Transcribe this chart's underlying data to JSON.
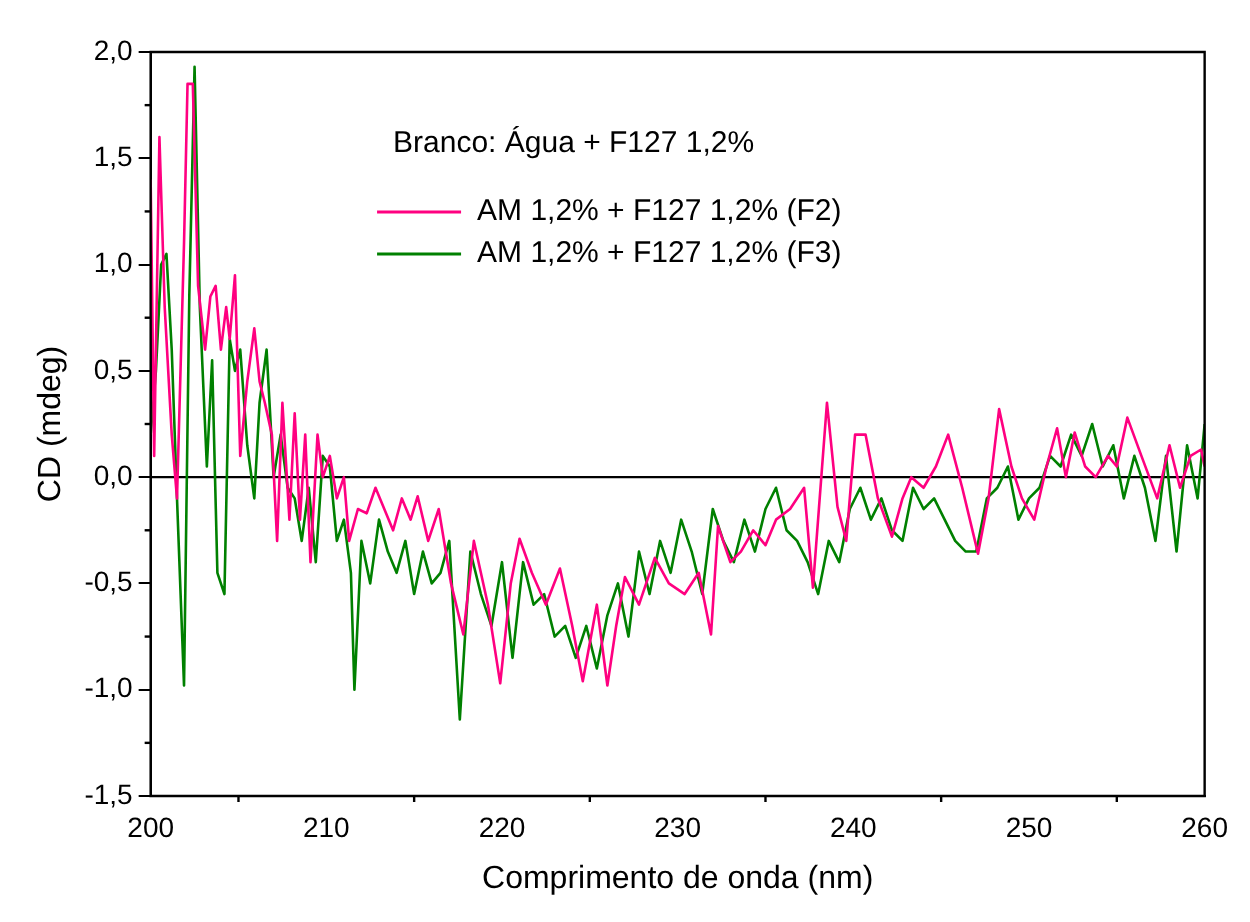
{
  "chart_data": {
    "type": "line",
    "xlabel": "Comprimento de onda (nm)",
    "ylabel": "CD (mdeg)",
    "annotations": [
      "Branco: Água + F127 1,2%"
    ],
    "xlim": [
      200,
      260
    ],
    "xticks": [
      200,
      210,
      220,
      230,
      240,
      250,
      260
    ],
    "ylim": [
      -1.5,
      2.0
    ],
    "yticks": [
      {
        "value": -1.5,
        "label": "-1,5"
      },
      {
        "value": -1.0,
        "label": "-1,0"
      },
      {
        "value": -0.5,
        "label": "-0,5"
      },
      {
        "value": 0,
        "label": "0,0"
      },
      {
        "value": 0.5,
        "label": "0,5"
      },
      {
        "value": 1.0,
        "label": "1,0"
      },
      {
        "value": 1.5,
        "label": "1,5"
      },
      {
        "value": 2.0,
        "label": "2,0"
      }
    ],
    "grid": false,
    "legend": "top",
    "marker": "none",
    "line_style": "solid",
    "ref_lines": [
      {
        "axis": "y",
        "value": 0,
        "color": "#000000"
      }
    ],
    "series": [
      {
        "name": "AM 1,2% + F127 1,2% (F2)",
        "color": "#ff0080",
        "x": [
          200,
          200.2,
          200.5,
          200.8,
          201.2,
          201.5,
          201.9,
          202.1,
          202.4,
          202.7,
          203.1,
          203.4,
          203.7,
          204,
          204.3,
          204.5,
          204.8,
          205.1,
          205.5,
          205.9,
          206.2,
          206.5,
          206.9,
          207.2,
          207.5,
          207.9,
          208.2,
          208.5,
          208.8,
          209.1,
          209.5,
          209.8,
          210.2,
          210.6,
          211,
          211.3,
          211.8,
          212.3,
          212.8,
          213.3,
          213.8,
          214.3,
          214.8,
          215.2,
          215.8,
          216.4,
          217.1,
          217.8,
          218.4,
          219.2,
          219.9,
          220.5,
          221,
          221.7,
          222.5,
          223.3,
          224,
          224.6,
          225.4,
          226,
          226.5,
          227,
          227.8,
          228.7,
          229.5,
          230.4,
          231.2,
          231.9,
          232.3,
          233,
          233.6,
          234.3,
          235,
          235.6,
          236.4,
          237.2,
          237.7,
          238.5,
          239.1,
          239.6,
          240.1,
          240.7,
          241.4,
          242.2,
          242.8,
          243.3,
          244,
          244.7,
          245.4,
          246.2,
          247.1,
          247.7,
          248.3,
          249,
          249.6,
          250.3,
          251,
          251.6,
          252.1,
          252.6,
          253.2,
          253.8,
          254.5,
          255,
          255.6,
          256.4,
          257.3,
          258,
          258.6,
          259.2,
          259.8,
          260
        ],
        "values": [
          1.4,
          0.1,
          1.6,
          0.8,
          0.2,
          -0.1,
          1.1,
          1.85,
          1.85,
          0.9,
          0.6,
          0.85,
          0.9,
          0.6,
          0.8,
          0.65,
          0.95,
          0.1,
          0.45,
          0.7,
          0.45,
          0.35,
          0.2,
          -0.3,
          0.35,
          -0.2,
          0.3,
          -0.2,
          0.2,
          -0.4,
          0.2,
          0,
          0.1,
          -0.1,
          0,
          -0.3,
          -0.15,
          -0.17,
          -0.05,
          -0.15,
          -0.25,
          -0.1,
          -0.2,
          -0.09,
          -0.3,
          -0.15,
          -0.5,
          -0.74,
          -0.3,
          -0.6,
          -0.97,
          -0.5,
          -0.29,
          -0.45,
          -0.6,
          -0.43,
          -0.7,
          -0.96,
          -0.6,
          -0.98,
          -0.7,
          -0.47,
          -0.6,
          -0.38,
          -0.5,
          -0.55,
          -0.45,
          -0.74,
          -0.23,
          -0.4,
          -0.35,
          -0.25,
          -0.32,
          -0.2,
          -0.15,
          -0.05,
          -0.52,
          0.35,
          -0.14,
          -0.3,
          0.2,
          0.2,
          -0.1,
          -0.28,
          -0.1,
          0,
          -0.05,
          0.05,
          0.2,
          -0.05,
          -0.36,
          -0.1,
          0.32,
          0.05,
          -0.1,
          -0.2,
          0.05,
          0.23,
          0,
          0.21,
          0.05,
          0,
          0.1,
          0.05,
          0.28,
          0.1,
          -0.1,
          0.15,
          -0.05,
          0.1,
          0.13,
          0.05
        ]
      },
      {
        "name": "AM 1,2% + F127 1,2% (F3)",
        "color": "#008000",
        "x": [
          200,
          200.3,
          200.6,
          200.9,
          201.2,
          201.5,
          201.9,
          202.2,
          202.5,
          202.8,
          203.2,
          203.5,
          203.8,
          204.2,
          204.5,
          204.8,
          205.1,
          205.5,
          205.9,
          206.2,
          206.6,
          207,
          207.4,
          207.8,
          208.2,
          208.6,
          209,
          209.4,
          209.8,
          210.2,
          210.6,
          211,
          211.4,
          211.6,
          212,
          212.5,
          213,
          213.5,
          214,
          214.5,
          215,
          215.5,
          216,
          216.5,
          217,
          217.6,
          218.2,
          218.8,
          219.4,
          220,
          220.6,
          221.2,
          221.8,
          222.4,
          223,
          223.6,
          224.2,
          224.8,
          225.4,
          226,
          226.6,
          227.2,
          227.8,
          228.4,
          229,
          229.6,
          230.2,
          230.8,
          231.4,
          232,
          232.6,
          233.2,
          233.8,
          234.4,
          235,
          235.6,
          236.2,
          236.8,
          237.4,
          238,
          238.6,
          239.2,
          239.8,
          240.4,
          241,
          241.6,
          242.2,
          242.8,
          243.4,
          244,
          244.6,
          245.2,
          245.8,
          246.4,
          247,
          247.6,
          248.2,
          248.8,
          249.4,
          250,
          250.6,
          251.2,
          251.8,
          252.4,
          253,
          253.6,
          254.2,
          254.8,
          255.4,
          256,
          256.6,
          257.2,
          257.8,
          258.4,
          259,
          259.6,
          260
        ],
        "values": [
          0.2,
          0.5,
          1.0,
          1.05,
          0.6,
          -0.1,
          -0.98,
          0.85,
          1.93,
          0.8,
          0.05,
          0.55,
          -0.45,
          -0.55,
          0.65,
          0.5,
          0.6,
          0.15,
          -0.1,
          0.35,
          0.6,
          0.0,
          0.2,
          -0.05,
          -0.1,
          -0.3,
          -0.05,
          -0.4,
          0.1,
          0.05,
          -0.3,
          -0.2,
          -0.45,
          -1.0,
          -0.3,
          -0.5,
          -0.2,
          -0.35,
          -0.45,
          -0.3,
          -0.55,
          -0.35,
          -0.5,
          -0.45,
          -0.3,
          -1.14,
          -0.35,
          -0.55,
          -0.7,
          -0.4,
          -0.85,
          -0.4,
          -0.6,
          -0.55,
          -0.75,
          -0.7,
          -0.85,
          -0.7,
          -0.9,
          -0.65,
          -0.5,
          -0.75,
          -0.35,
          -0.55,
          -0.3,
          -0.45,
          -0.2,
          -0.35,
          -0.55,
          -0.15,
          -0.3,
          -0.4,
          -0.2,
          -0.35,
          -0.15,
          -0.05,
          -0.25,
          -0.3,
          -0.4,
          -0.55,
          -0.3,
          -0.4,
          -0.15,
          -0.05,
          -0.2,
          -0.1,
          -0.25,
          -0.3,
          -0.05,
          -0.15,
          -0.1,
          -0.2,
          -0.3,
          -0.35,
          -0.35,
          -0.1,
          -0.05,
          0.05,
          -0.2,
          -0.1,
          -0.05,
          0.1,
          0.05,
          0.2,
          0.1,
          0.25,
          0.05,
          0.15,
          -0.1,
          0.1,
          -0.05,
          -0.3,
          0.1,
          -0.35,
          0.15,
          -0.1,
          0.25
        ]
      }
    ]
  }
}
